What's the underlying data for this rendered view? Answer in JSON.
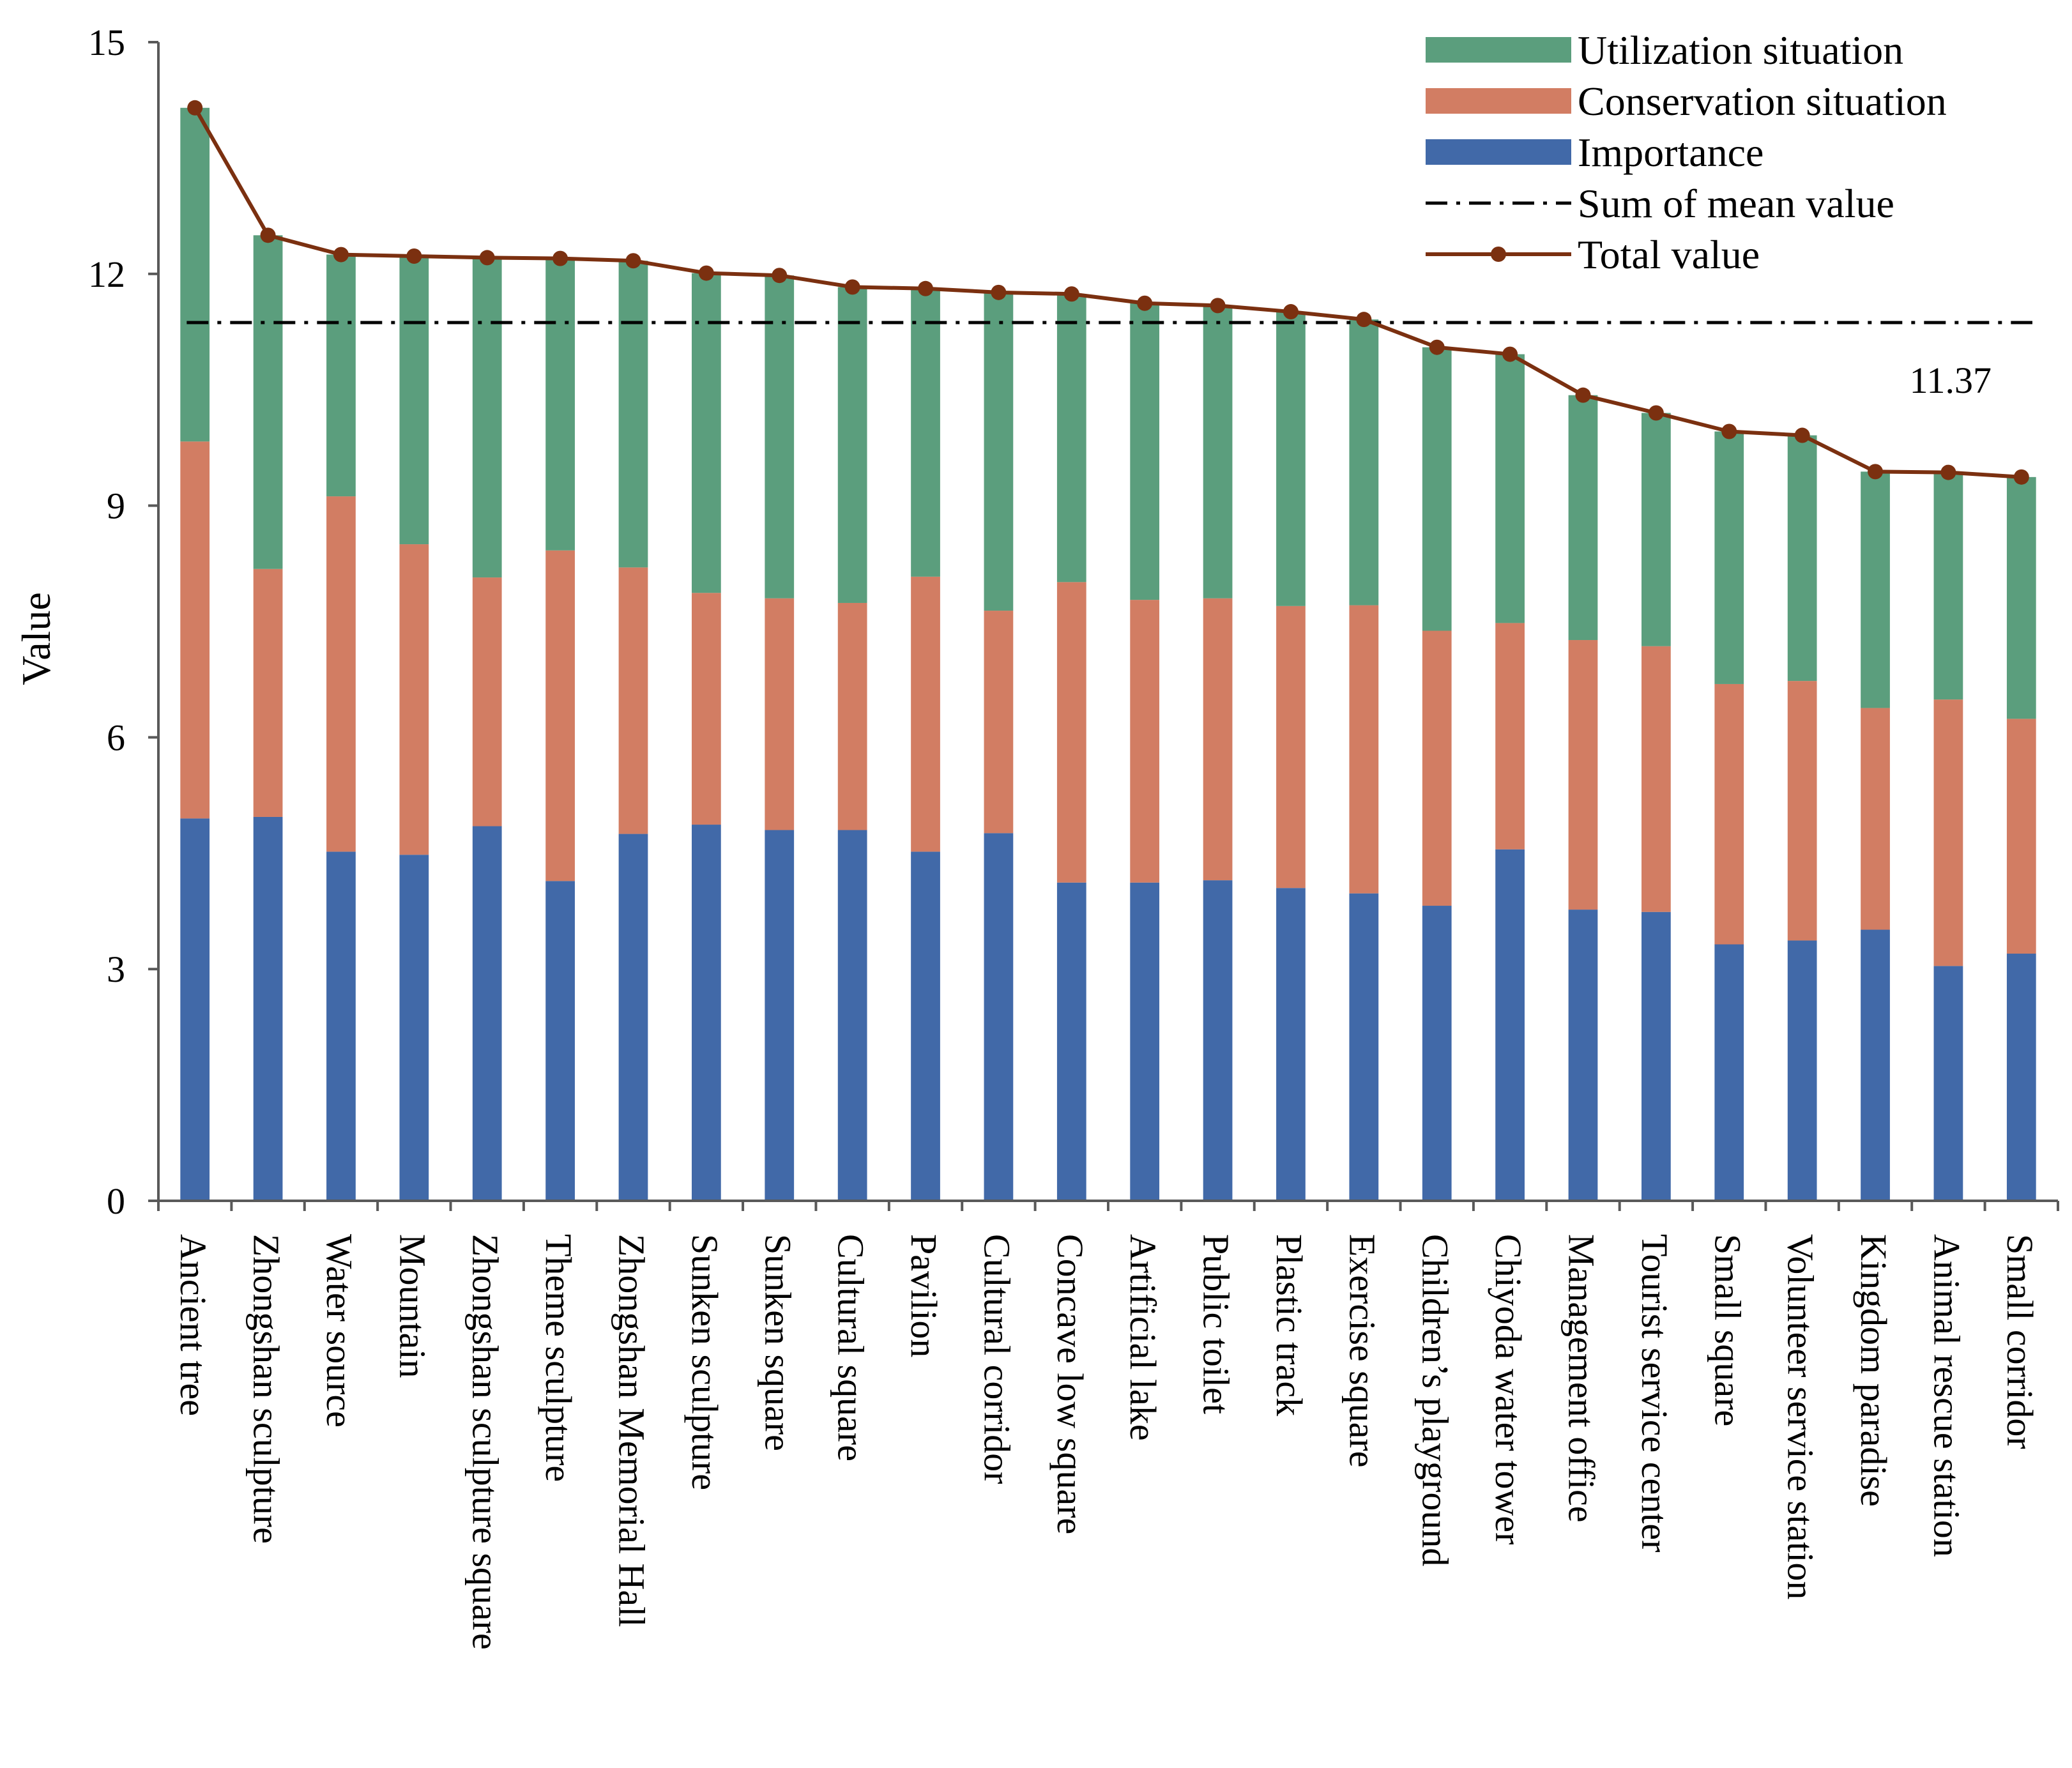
{
  "chart_data": {
    "type": "bar",
    "stacked": true,
    "ylabel": "Value",
    "xlabel": "",
    "ylim": [
      0,
      15
    ],
    "yticks": [
      0,
      3,
      6,
      9,
      12,
      15
    ],
    "categories": [
      "Ancient tree",
      "Zhongshan sculpture",
      "Water source",
      "Mountain",
      "Zhongshan sculpture square",
      "Theme sculpture",
      "Zhongshan Memorial Hall",
      "Sunken sculpture",
      "Sunken square",
      "Cultural square",
      "Pavilion",
      "Cultural corridor",
      "Concave low square",
      "Artificial lake",
      "Public toilet",
      "Plastic track",
      "Exercise square",
      "Children’s playground",
      "Chiyoda water tower",
      "Management office",
      "Tourist service center",
      "Small square",
      "Volunteer service station",
      "Kingdom paradise",
      "Animal rescue station",
      "Small corridor"
    ],
    "series": [
      {
        "name": "Importance",
        "color": "#4169a8",
        "values": [
          4.95,
          4.97,
          4.52,
          4.48,
          4.85,
          4.14,
          4.75,
          4.87,
          4.8,
          4.8,
          4.52,
          4.76,
          4.12,
          4.12,
          4.15,
          4.05,
          3.98,
          3.82,
          4.55,
          3.77,
          3.74,
          3.32,
          3.37,
          3.51,
          3.04,
          3.2
        ]
      },
      {
        "name": "Conservation situation",
        "color": "#d27d63",
        "values": [
          4.88,
          3.21,
          4.6,
          4.02,
          3.22,
          4.28,
          3.45,
          3.0,
          3.0,
          2.94,
          3.56,
          2.88,
          3.89,
          3.66,
          3.65,
          3.65,
          3.73,
          3.56,
          2.93,
          3.49,
          3.44,
          3.37,
          3.36,
          2.87,
          3.45,
          3.04
        ]
      },
      {
        "name": "Utilization situation",
        "color": "#5b9e7d",
        "values": [
          4.32,
          4.32,
          3.13,
          3.73,
          4.14,
          3.78,
          3.97,
          4.14,
          4.18,
          4.09,
          3.73,
          4.12,
          3.73,
          3.84,
          3.79,
          3.81,
          3.7,
          3.67,
          3.48,
          3.17,
          3.02,
          3.27,
          3.18,
          3.06,
          2.94,
          3.13
        ]
      }
    ],
    "total_series": {
      "name": "Total value",
      "color": "#7b3010",
      "values": [
        14.15,
        12.5,
        12.25,
        12.23,
        12.21,
        12.2,
        12.17,
        12.01,
        11.98,
        11.83,
        11.81,
        11.76,
        11.74,
        11.62,
        11.59,
        11.51,
        11.41,
        11.05,
        10.96,
        10.43,
        10.2,
        9.96,
        9.91,
        9.44,
        9.43,
        9.37
      ]
    },
    "reference_line": {
      "name": "Sum of mean value",
      "value": 11.37,
      "label": "11.37",
      "color": "#000000"
    },
    "legend": {
      "position": "top-right",
      "entries": [
        {
          "label": "Utilization situation",
          "kind": "bar",
          "color": "#5b9e7d"
        },
        {
          "label": "Conservation situation",
          "kind": "bar",
          "color": "#d27d63"
        },
        {
          "label": "Importance",
          "kind": "bar",
          "color": "#4169a8"
        },
        {
          "label": "Sum of mean value",
          "kind": "dashdot",
          "color": "#000000"
        },
        {
          "label": "Total value",
          "kind": "line-marker",
          "color": "#7b3010"
        }
      ]
    },
    "grid": false
  }
}
